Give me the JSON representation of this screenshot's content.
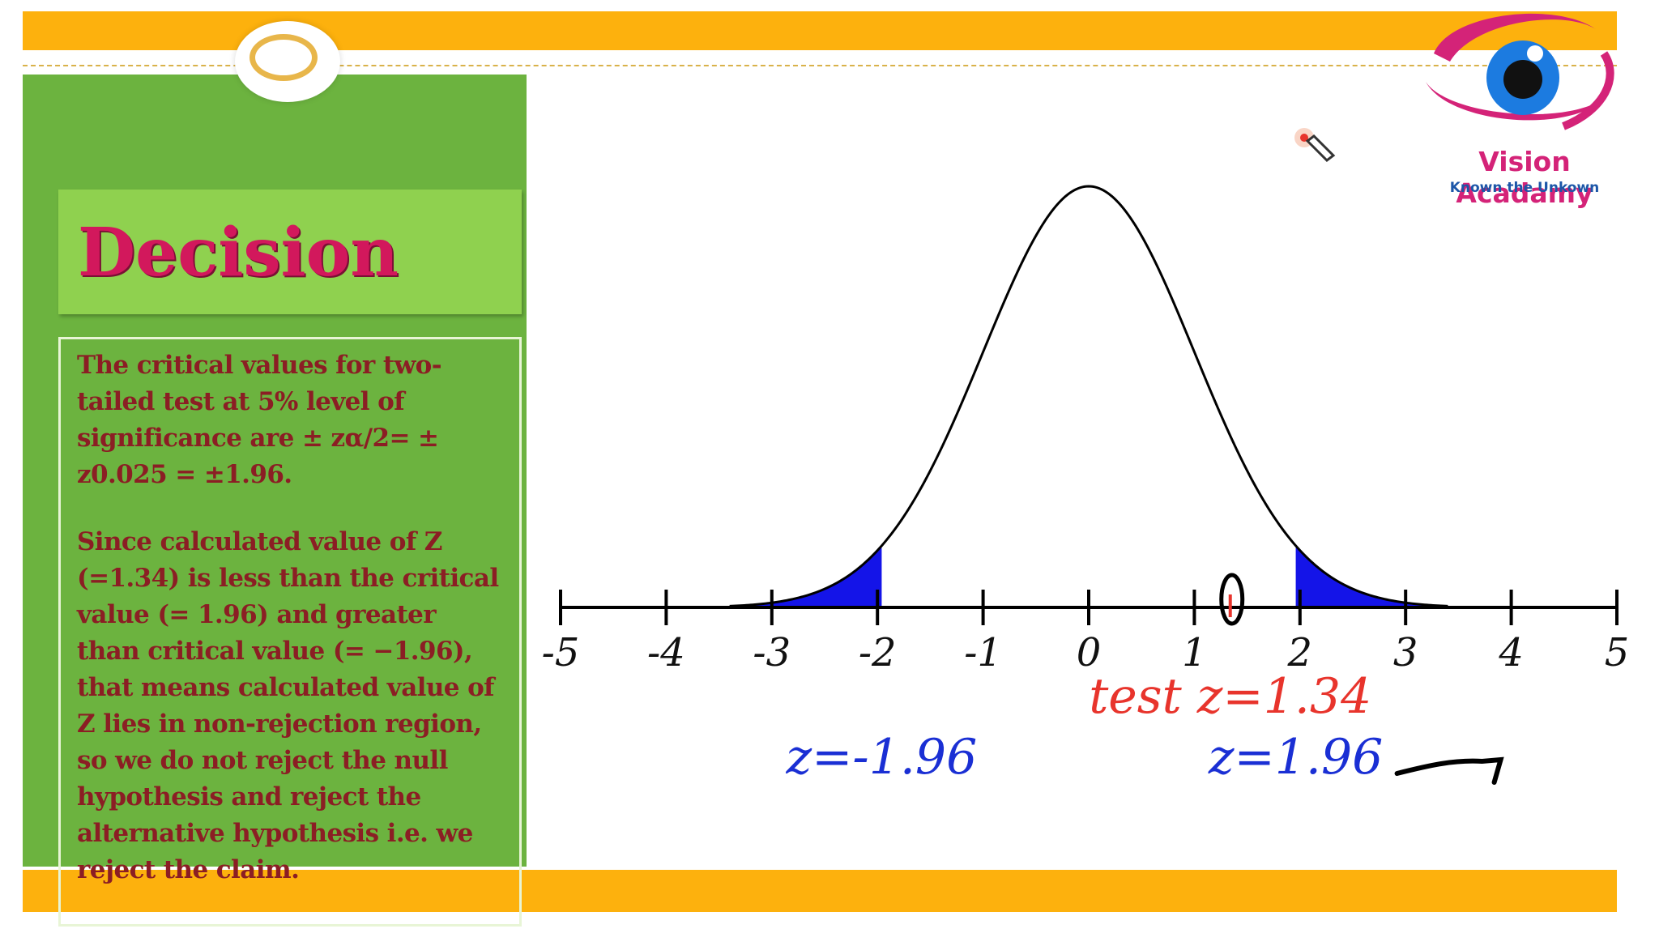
{
  "slide": {
    "title": "Decision",
    "paragraph_1": "The critical values for two-tailed test at 5% level of significance are ± zα/2= ± z0.025 = ±1.96.",
    "paragraph_2": "Since calculated value of Z (=1.34) is less than the critical value (= 1.96) and greater than critical value (= −1.96), that means calculated value of Z lies in non-rejection region, so we do not reject the null hypothesis and reject the alternative hypothesis i.e. we reject the claim."
  },
  "logo": {
    "name": "Vision Acadamy",
    "tagline": "Known the Unkown"
  },
  "chart_data": {
    "type": "area",
    "curve": "standard normal density",
    "xlim": [
      -5,
      5
    ],
    "x_ticks": [
      -5,
      -4,
      -3,
      -2,
      -1,
      0,
      1,
      2,
      3,
      4,
      5
    ],
    "shaded_regions": [
      {
        "from": -3.4,
        "to": -1.96,
        "color": "#1414e8"
      },
      {
        "from": 1.96,
        "to": 3.4,
        "color": "#1414e8"
      }
    ],
    "annotations": [
      {
        "text": "test z=1.34",
        "x": 1.34,
        "color": "#e8342c"
      },
      {
        "text": "z=-1.96",
        "x": -1.96,
        "color": "#1a2fd4"
      },
      {
        "text": "z=1.96",
        "x": 1.96,
        "color": "#1a2fd4"
      }
    ],
    "test_marker_x": 1.34,
    "curve_color": "#000000",
    "shade_color": "#1414e8"
  }
}
